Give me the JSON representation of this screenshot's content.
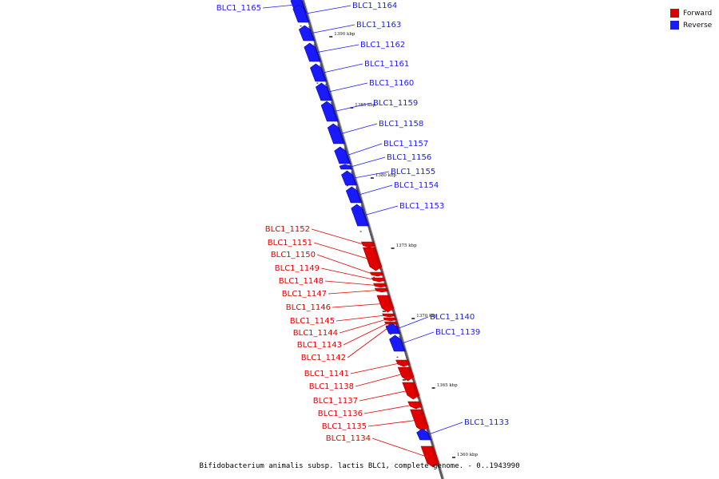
{
  "legend": {
    "forward": {
      "label": "Forward",
      "color": "#e00000"
    },
    "reverse": {
      "label": "Reverse",
      "color": "#1a1aff"
    }
  },
  "caption": "Bifidobacterium animalis subsp. lactis BLC1, complete genome. - 0..1943990",
  "colors": {
    "axis": "#808080",
    "forward": "#e00000",
    "reverse": "#1a1aff",
    "tick": "#222222"
  },
  "scale_labels": [
    "1390 kbp",
    "1385 kbp",
    "1380 kbp",
    "1375 kbp",
    "1370 kbp",
    "1365 kbp",
    "1360 kbp"
  ],
  "genes": [
    {
      "name": "BLC1_1165",
      "strand": "reverse"
    },
    {
      "name": "BLC1_1164",
      "strand": "reverse"
    },
    {
      "name": "BLC1_1163",
      "strand": "reverse"
    },
    {
      "name": "BLC1_1162",
      "strand": "reverse"
    },
    {
      "name": "BLC1_1161",
      "strand": "reverse"
    },
    {
      "name": "BLC1_1160",
      "strand": "reverse"
    },
    {
      "name": "BLC1_1159",
      "strand": "reverse"
    },
    {
      "name": "BLC1_1158",
      "strand": "reverse"
    },
    {
      "name": "BLC1_1157",
      "strand": "reverse"
    },
    {
      "name": "BLC1_1156",
      "strand": "reverse"
    },
    {
      "name": "BLC1_1155",
      "strand": "reverse"
    },
    {
      "name": "BLC1_1154",
      "strand": "reverse"
    },
    {
      "name": "BLC1_1153",
      "strand": "reverse"
    },
    {
      "name": "BLC1_1152",
      "strand": "forward"
    },
    {
      "name": "BLC1_1151",
      "strand": "forward"
    },
    {
      "name": "BLC1_1150",
      "strand": "forward"
    },
    {
      "name": "BLC1_1149",
      "strand": "forward"
    },
    {
      "name": "BLC1_1148",
      "strand": "forward"
    },
    {
      "name": "BLC1_1147",
      "strand": "forward"
    },
    {
      "name": "BLC1_1146",
      "strand": "forward"
    },
    {
      "name": "BLC1_1145",
      "strand": "forward"
    },
    {
      "name": "BLC1_1144",
      "strand": "forward"
    },
    {
      "name": "BLC1_1143",
      "strand": "forward"
    },
    {
      "name": "BLC1_1142",
      "strand": "forward"
    },
    {
      "name": "BLC1_1141",
      "strand": "forward"
    },
    {
      "name": "BLC1_1140",
      "strand": "reverse"
    },
    {
      "name": "BLC1_1139",
      "strand": "reverse"
    },
    {
      "name": "BLC1_1138",
      "strand": "forward"
    },
    {
      "name": "BLC1_1137",
      "strand": "forward"
    },
    {
      "name": "BLC1_1136",
      "strand": "forward"
    },
    {
      "name": "BLC1_1135",
      "strand": "forward"
    },
    {
      "name": "BLC1_1134",
      "strand": "forward"
    },
    {
      "name": "BLC1_1133",
      "strand": "reverse"
    }
  ]
}
